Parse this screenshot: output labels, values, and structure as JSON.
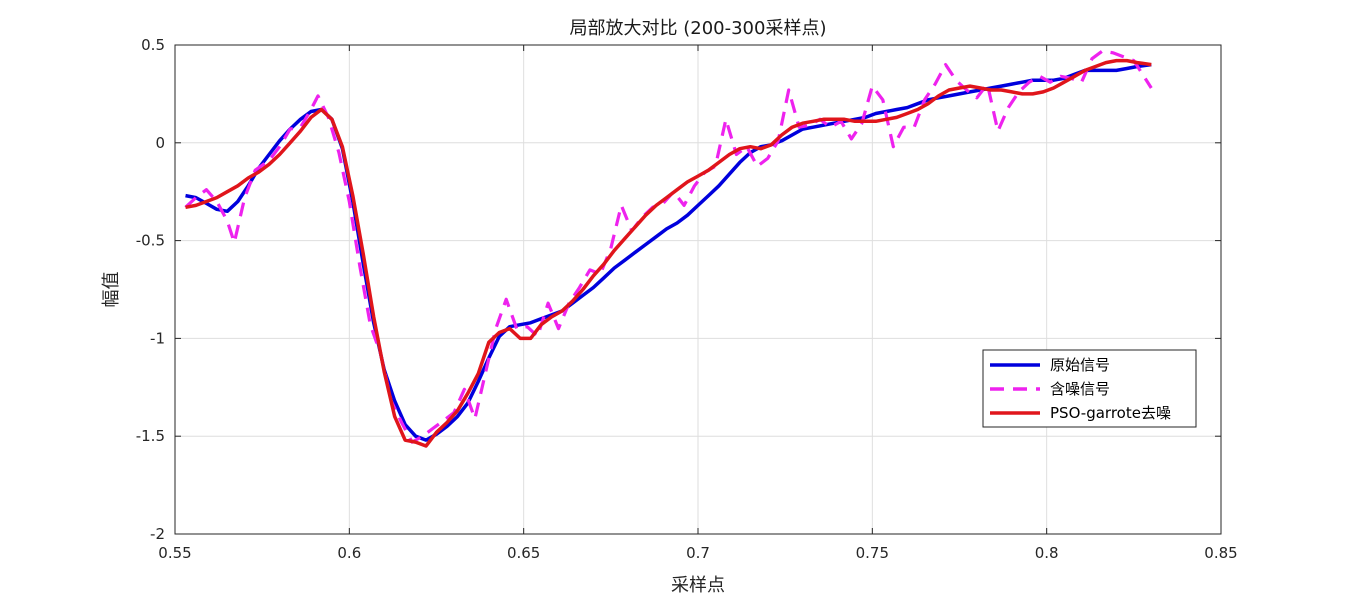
{
  "chart_data": {
    "type": "line",
    "title": "局部放大对比 (200-300采样点)",
    "xlabel": "采样点",
    "ylabel": "幅值",
    "xlim": [
      0.55,
      0.85
    ],
    "ylim": [
      -2,
      0.5
    ],
    "xticks": [
      0.55,
      0.6,
      0.65,
      0.7,
      0.75,
      0.8,
      0.85
    ],
    "xtick_labels": [
      "0.55",
      "0.6",
      "0.65",
      "0.7",
      "0.75",
      "0.8",
      "0.85"
    ],
    "yticks": [
      -2,
      -1.5,
      -1,
      -0.5,
      0,
      0.5
    ],
    "ytick_labels": [
      "-2",
      "-1.5",
      "-1",
      "-0.5",
      "0",
      "0.5"
    ],
    "grid": true,
    "legend_position": "lower-right",
    "series": [
      {
        "name": "原始信号",
        "color": "#0000dd",
        "style": "solid",
        "x": [
          0.553,
          0.556,
          0.559,
          0.562,
          0.565,
          0.568,
          0.571,
          0.574,
          0.577,
          0.58,
          0.583,
          0.586,
          0.589,
          0.592,
          0.595,
          0.598,
          0.601,
          0.604,
          0.607,
          0.61,
          0.613,
          0.616,
          0.619,
          0.622,
          0.625,
          0.628,
          0.631,
          0.634,
          0.637,
          0.64,
          0.643,
          0.646,
          0.649,
          0.652,
          0.655,
          0.658,
          0.661,
          0.664,
          0.667,
          0.67,
          0.673,
          0.676,
          0.679,
          0.682,
          0.685,
          0.688,
          0.691,
          0.694,
          0.697,
          0.7,
          0.703,
          0.706,
          0.709,
          0.712,
          0.715,
          0.718,
          0.721,
          0.724,
          0.727,
          0.73,
          0.733,
          0.736,
          0.739,
          0.742,
          0.745,
          0.748,
          0.751,
          0.754,
          0.757,
          0.76,
          0.763,
          0.766,
          0.769,
          0.772,
          0.775,
          0.778,
          0.781,
          0.784,
          0.787,
          0.79,
          0.793,
          0.796,
          0.799,
          0.802,
          0.805,
          0.808,
          0.811,
          0.814,
          0.817,
          0.82,
          0.823,
          0.826,
          0.83
        ],
        "y": [
          -0.27,
          -0.28,
          -0.31,
          -0.34,
          -0.35,
          -0.3,
          -0.22,
          -0.13,
          -0.06,
          0.01,
          0.07,
          0.12,
          0.16,
          0.17,
          0.12,
          -0.03,
          -0.3,
          -0.62,
          -0.92,
          -1.16,
          -1.32,
          -1.44,
          -1.5,
          -1.52,
          -1.49,
          -1.45,
          -1.4,
          -1.33,
          -1.22,
          -1.1,
          -0.99,
          -0.94,
          -0.93,
          -0.92,
          -0.9,
          -0.88,
          -0.86,
          -0.82,
          -0.78,
          -0.74,
          -0.69,
          -0.64,
          -0.6,
          -0.56,
          -0.52,
          -0.48,
          -0.44,
          -0.41,
          -0.37,
          -0.32,
          -0.27,
          -0.22,
          -0.16,
          -0.1,
          -0.05,
          -0.02,
          -0.01,
          0.01,
          0.04,
          0.07,
          0.08,
          0.09,
          0.1,
          0.11,
          0.12,
          0.13,
          0.15,
          0.16,
          0.17,
          0.18,
          0.2,
          0.22,
          0.23,
          0.24,
          0.25,
          0.26,
          0.27,
          0.28,
          0.29,
          0.3,
          0.31,
          0.32,
          0.32,
          0.32,
          0.33,
          0.35,
          0.37,
          0.37,
          0.37,
          0.37,
          0.38,
          0.39,
          0.4
        ]
      },
      {
        "name": "含噪信号",
        "color": "#ee22ee",
        "style": "dashed",
        "x": [
          0.553,
          0.556,
          0.559,
          0.562,
          0.565,
          0.567,
          0.57,
          0.573,
          0.577,
          0.58,
          0.583,
          0.586,
          0.589,
          0.591,
          0.594,
          0.597,
          0.6,
          0.603,
          0.606,
          0.609,
          0.612,
          0.615,
          0.618,
          0.621,
          0.624,
          0.627,
          0.63,
          0.633,
          0.636,
          0.639,
          0.642,
          0.645,
          0.648,
          0.651,
          0.654,
          0.657,
          0.66,
          0.663,
          0.666,
          0.669,
          0.672,
          0.675,
          0.678,
          0.681,
          0.684,
          0.687,
          0.69,
          0.693,
          0.696,
          0.699,
          0.702,
          0.705,
          0.708,
          0.711,
          0.714,
          0.717,
          0.72,
          0.723,
          0.726,
          0.729,
          0.732,
          0.735,
          0.738,
          0.741,
          0.744,
          0.747,
          0.75,
          0.753,
          0.756,
          0.759,
          0.762,
          0.765,
          0.768,
          0.771,
          0.774,
          0.777,
          0.78,
          0.783,
          0.786,
          0.789,
          0.792,
          0.795,
          0.798,
          0.801,
          0.804,
          0.807,
          0.81,
          0.813,
          0.816,
          0.819,
          0.822,
          0.825,
          0.83
        ],
        "y": [
          -0.33,
          -0.28,
          -0.24,
          -0.3,
          -0.4,
          -0.51,
          -0.28,
          -0.14,
          -0.09,
          -0.02,
          0.07,
          0.08,
          0.17,
          0.24,
          0.13,
          -0.05,
          -0.3,
          -0.63,
          -0.93,
          -1.08,
          -1.32,
          -1.43,
          -1.53,
          -1.5,
          -1.46,
          -1.42,
          -1.38,
          -1.26,
          -1.41,
          -1.18,
          -0.95,
          -0.8,
          -0.95,
          -0.94,
          -0.99,
          -0.82,
          -0.95,
          -0.82,
          -0.74,
          -0.65,
          -0.67,
          -0.54,
          -0.32,
          -0.45,
          -0.38,
          -0.33,
          -0.31,
          -0.25,
          -0.32,
          -0.22,
          -0.15,
          -0.12,
          0.12,
          -0.06,
          -0.02,
          -0.12,
          -0.08,
          0.01,
          0.27,
          0.08,
          0.09,
          0.12,
          0.08,
          0.11,
          0.02,
          0.1,
          0.29,
          0.22,
          -0.02,
          0.08,
          0.08,
          0.22,
          0.3,
          0.4,
          0.32,
          0.27,
          0.23,
          0.3,
          0.06,
          0.18,
          0.26,
          0.31,
          0.34,
          0.31,
          0.34,
          0.33,
          0.31,
          0.43,
          0.47,
          0.46,
          0.44,
          0.42,
          0.28
        ]
      },
      {
        "name": "PSO-garrote去噪",
        "color": "#e0151b",
        "style": "solid",
        "x": [
          0.553,
          0.556,
          0.559,
          0.562,
          0.565,
          0.568,
          0.571,
          0.574,
          0.577,
          0.58,
          0.583,
          0.586,
          0.589,
          0.592,
          0.595,
          0.598,
          0.601,
          0.604,
          0.607,
          0.61,
          0.613,
          0.616,
          0.619,
          0.622,
          0.625,
          0.628,
          0.631,
          0.634,
          0.637,
          0.64,
          0.643,
          0.646,
          0.649,
          0.652,
          0.655,
          0.658,
          0.661,
          0.664,
          0.667,
          0.67,
          0.673,
          0.676,
          0.679,
          0.682,
          0.685,
          0.688,
          0.691,
          0.694,
          0.697,
          0.7,
          0.703,
          0.706,
          0.709,
          0.712,
          0.715,
          0.718,
          0.721,
          0.724,
          0.727,
          0.73,
          0.733,
          0.736,
          0.739,
          0.742,
          0.745,
          0.748,
          0.751,
          0.754,
          0.757,
          0.76,
          0.763,
          0.766,
          0.769,
          0.772,
          0.775,
          0.778,
          0.781,
          0.784,
          0.787,
          0.79,
          0.793,
          0.796,
          0.799,
          0.802,
          0.805,
          0.808,
          0.811,
          0.814,
          0.817,
          0.82,
          0.823,
          0.826,
          0.83
        ],
        "y": [
          -0.33,
          -0.32,
          -0.3,
          -0.28,
          -0.25,
          -0.22,
          -0.18,
          -0.15,
          -0.11,
          -0.06,
          0.0,
          0.06,
          0.13,
          0.17,
          0.12,
          -0.02,
          -0.27,
          -0.57,
          -0.89,
          -1.17,
          -1.4,
          -1.52,
          -1.53,
          -1.55,
          -1.48,
          -1.43,
          -1.37,
          -1.28,
          -1.18,
          -1.02,
          -0.97,
          -0.95,
          -1.0,
          -1.0,
          -0.93,
          -0.89,
          -0.86,
          -0.81,
          -0.75,
          -0.68,
          -0.62,
          -0.55,
          -0.49,
          -0.43,
          -0.37,
          -0.32,
          -0.28,
          -0.24,
          -0.2,
          -0.17,
          -0.14,
          -0.1,
          -0.06,
          -0.03,
          -0.02,
          -0.03,
          -0.01,
          0.04,
          0.08,
          0.1,
          0.11,
          0.12,
          0.12,
          0.12,
          0.11,
          0.11,
          0.11,
          0.12,
          0.13,
          0.15,
          0.17,
          0.2,
          0.24,
          0.27,
          0.28,
          0.29,
          0.28,
          0.27,
          0.27,
          0.26,
          0.25,
          0.25,
          0.26,
          0.28,
          0.31,
          0.34,
          0.37,
          0.39,
          0.41,
          0.42,
          0.42,
          0.41,
          0.4
        ]
      }
    ]
  }
}
